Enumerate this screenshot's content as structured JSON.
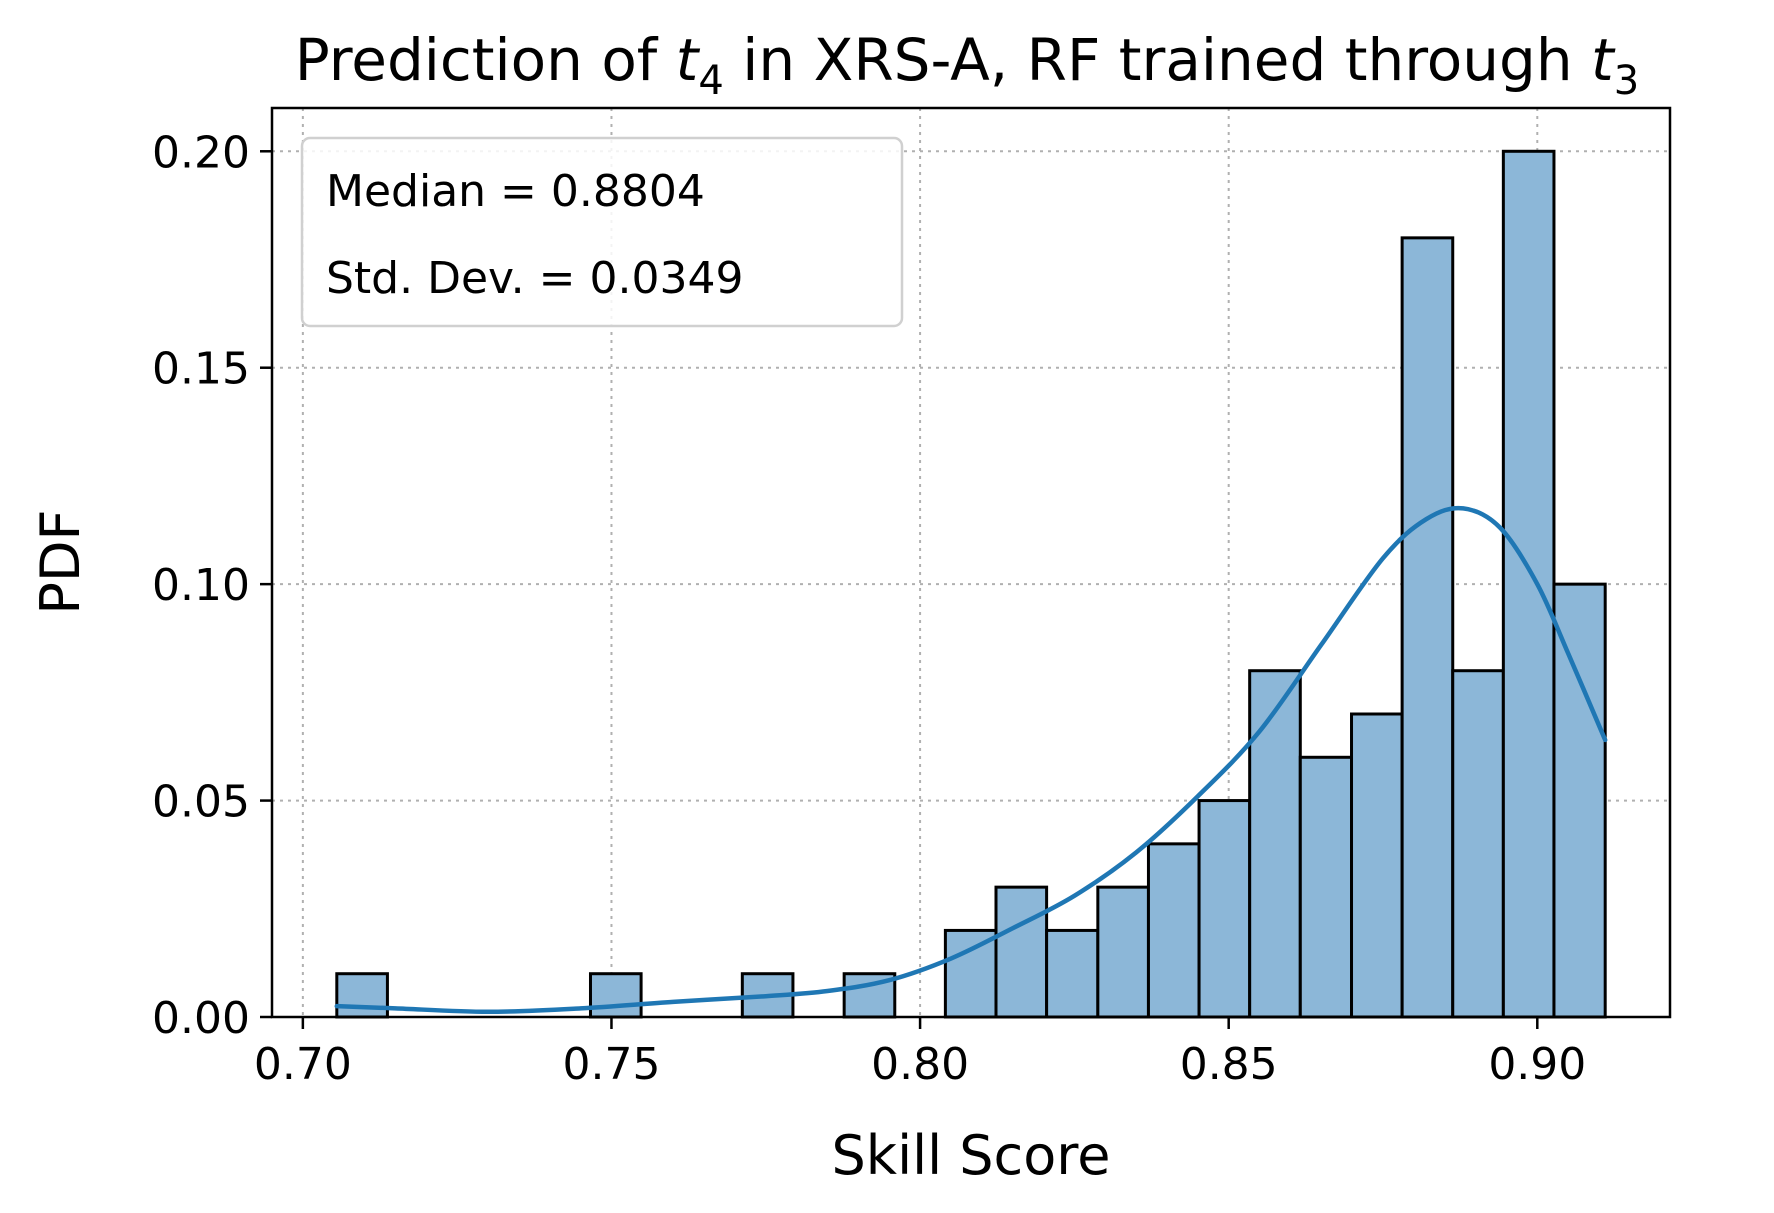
{
  "chart_data": {
    "type": "bar",
    "title": {
      "prefix": "Prediction of ",
      "var1": "t",
      "var1_sub": "4",
      "middle": " in XRS-A, RF trained through ",
      "var2": "t",
      "var2_sub": "3"
    },
    "xlabel": "Skill Score",
    "ylabel": "PDF",
    "xlim": [
      0.695,
      0.9215
    ],
    "ylim": [
      0,
      0.21
    ],
    "xticks": [
      0.7,
      0.75,
      0.8,
      0.85,
      0.9
    ],
    "xtick_labels": [
      "0.70",
      "0.75",
      "0.80",
      "0.85",
      "0.90"
    ],
    "yticks": [
      0.0,
      0.05,
      0.1,
      0.15,
      0.2
    ],
    "ytick_labels": [
      "0.00",
      "0.05",
      "0.10",
      "0.15",
      "0.20"
    ],
    "grid": true,
    "legend_location": "upper-left",
    "annotations": [
      "Median = 0.8804",
      "Std. Dev. = 0.0349"
    ],
    "bars": [
      {
        "x0": 0.7055,
        "x1": 0.7137,
        "value": 0.01
      },
      {
        "x0": 0.7466,
        "x1": 0.7548,
        "value": 0.01
      },
      {
        "x0": 0.7712,
        "x1": 0.7794,
        "value": 0.01
      },
      {
        "x0": 0.7877,
        "x1": 0.7959,
        "value": 0.01
      },
      {
        "x0": 0.8041,
        "x1": 0.8123,
        "value": 0.02
      },
      {
        "x0": 0.8123,
        "x1": 0.8205,
        "value": 0.03
      },
      {
        "x0": 0.8205,
        "x1": 0.8288,
        "value": 0.02
      },
      {
        "x0": 0.8288,
        "x1": 0.837,
        "value": 0.03
      },
      {
        "x0": 0.837,
        "x1": 0.8452,
        "value": 0.04
      },
      {
        "x0": 0.8452,
        "x1": 0.8534,
        "value": 0.05
      },
      {
        "x0": 0.8534,
        "x1": 0.8616,
        "value": 0.08
      },
      {
        "x0": 0.8616,
        "x1": 0.8699,
        "value": 0.06
      },
      {
        "x0": 0.8699,
        "x1": 0.8781,
        "value": 0.07
      },
      {
        "x0": 0.8781,
        "x1": 0.8863,
        "value": 0.18
      },
      {
        "x0": 0.8863,
        "x1": 0.8945,
        "value": 0.08
      },
      {
        "x0": 0.8945,
        "x1": 0.9027,
        "value": 0.2
      },
      {
        "x0": 0.9027,
        "x1": 0.911,
        "value": 0.1
      }
    ],
    "kde": {
      "color": "#1f77b4",
      "x": [
        0.7055,
        0.715,
        0.73,
        0.745,
        0.76,
        0.775,
        0.785,
        0.795,
        0.805,
        0.815,
        0.825,
        0.835,
        0.845,
        0.855,
        0.865,
        0.875,
        0.882,
        0.888,
        0.894,
        0.9,
        0.905,
        0.911
      ],
      "y": [
        0.0025,
        0.002,
        0.0012,
        0.002,
        0.0035,
        0.0048,
        0.006,
        0.0085,
        0.0135,
        0.0205,
        0.028,
        0.038,
        0.051,
        0.066,
        0.086,
        0.106,
        0.115,
        0.1175,
        0.113,
        0.1,
        0.084,
        0.064
      ]
    },
    "bar_color": "#8cb7d8"
  }
}
